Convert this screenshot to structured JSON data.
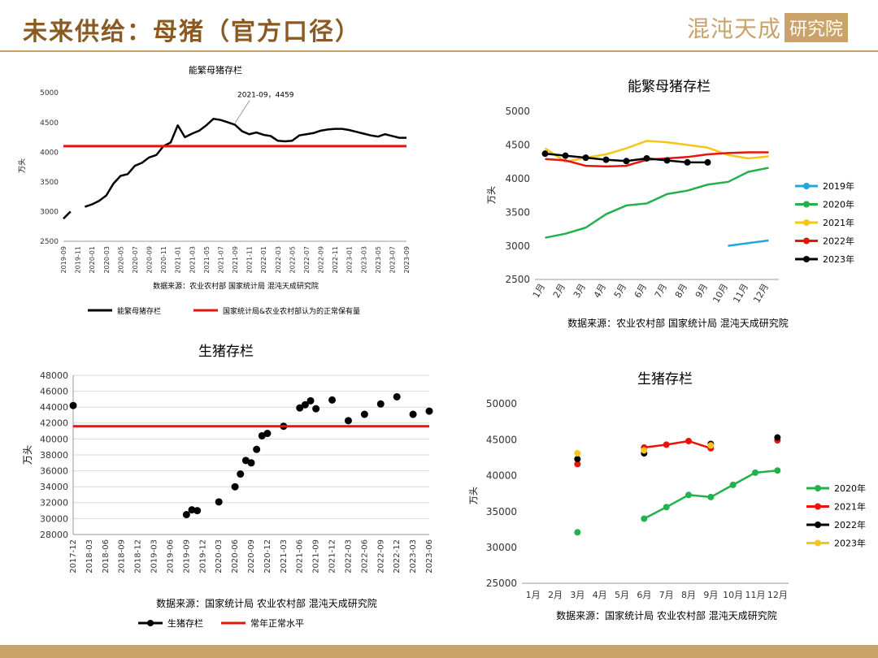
{
  "header": {
    "title": "未来供给：母猪（官方口径）",
    "brand_main": "混沌天成",
    "brand_box": "研究院"
  },
  "colors": {
    "accent": "#c9a36a",
    "title": "#8a5a22",
    "red": "#e8140c",
    "black": "#000000",
    "green": "#22b14c",
    "yellow": "#f5c518",
    "blue": "#1fa7e0"
  },
  "chart_data": [
    {
      "type": "line",
      "title": "能繁母猪存栏",
      "ylabel": "万头",
      "ylim": [
        2500,
        5000
      ],
      "yticks": [
        2500,
        3000,
        3500,
        4000,
        4500,
        5000
      ],
      "categories": [
        "2019-09",
        "2019-10",
        "2019-11",
        "2019-12",
        "2020-01",
        "2020-02",
        "2020-03",
        "2020-04",
        "2020-05",
        "2020-06",
        "2020-07",
        "2020-08",
        "2020-09",
        "2020-10",
        "2020-11",
        "2020-12",
        "2021-01",
        "2021-02",
        "2021-03",
        "2021-04",
        "2021-05",
        "2021-06",
        "2021-07",
        "2021-08",
        "2021-09",
        "2021-10",
        "2021-11",
        "2021-12",
        "2022-01",
        "2022-02",
        "2022-03",
        "2022-04",
        "2022-05",
        "2022-06",
        "2022-07",
        "2022-08",
        "2022-09",
        "2022-10",
        "2022-11",
        "2022-12",
        "2023-01",
        "2023-02",
        "2023-03",
        "2023-04",
        "2023-05",
        "2023-06",
        "2023-07",
        "2023-08",
        "2023-09"
      ],
      "tick_labels": [
        "2019-09",
        "2019-11",
        "2020-01",
        "2020-03",
        "2020-05",
        "2020-07",
        "2020-09",
        "2020-11",
        "2021-01",
        "2021-03",
        "2021-05",
        "2021-07",
        "2021-09",
        "2021-11",
        "2022-01",
        "2022-03",
        "2022-05",
        "2022-07",
        "2022-09",
        "2022-11",
        "2023-01",
        "2023-03",
        "2023-05",
        "2023-07",
        "2023-09"
      ],
      "series": [
        {
          "name": "能繁母猪存栏",
          "color": "#000000",
          "values": [
            2880,
            3000,
            null,
            3080,
            3120,
            3180,
            3270,
            3470,
            3600,
            3630,
            3770,
            3820,
            3910,
            3950,
            4100,
            4160,
            4450,
            4250,
            4310,
            4360,
            4450,
            4560,
            4540,
            4500,
            4459,
            4350,
            4300,
            4330,
            4290,
            4270,
            4190,
            4180,
            4190,
            4280,
            4300,
            4320,
            4360,
            4380,
            4390,
            4390,
            4370,
            4340,
            4310,
            4280,
            4260,
            4300,
            4270,
            4240,
            4240
          ]
        },
        {
          "name": "国家统计局&农业农村部认为的正常保有量",
          "color": "#e8140c",
          "constant": 4100
        }
      ],
      "annotation": {
        "text": "2021-09，4459",
        "category": "2021-09",
        "value": 4459
      },
      "source": "数据来源：农业农村部 国家统计局 混沌天成研究院",
      "legend": "bottom"
    },
    {
      "type": "line",
      "title": "能繁母猪存栏",
      "ylabel": "万头",
      "ylim": [
        2500,
        5000
      ],
      "yticks": [
        2500,
        3000,
        3500,
        4000,
        4500,
        5000
      ],
      "categories": [
        "1月",
        "2月",
        "3月",
        "4月",
        "5月",
        "6月",
        "7月",
        "8月",
        "9月",
        "10月",
        "11月",
        "12月"
      ],
      "series": [
        {
          "name": "2019年",
          "color": "#1fa7e0",
          "values": [
            null,
            null,
            null,
            null,
            null,
            null,
            null,
            null,
            null,
            3000,
            3040,
            3080
          ]
        },
        {
          "name": "2020年",
          "color": "#22b14c",
          "values": [
            3120,
            3180,
            3270,
            3470,
            3600,
            3630,
            3770,
            3820,
            3910,
            3950,
            4100,
            4160
          ]
        },
        {
          "name": "2021年",
          "color": "#f5c518",
          "values": [
            4450,
            4250,
            4310,
            4360,
            4450,
            4560,
            4540,
            4500,
            4459,
            4350,
            4300,
            4330
          ]
        },
        {
          "name": "2022年",
          "color": "#e8140c",
          "values": [
            4290,
            4270,
            4190,
            4180,
            4190,
            4280,
            4300,
            4320,
            4360,
            4380,
            4390,
            4390
          ]
        },
        {
          "name": "2023年",
          "color": "#000000",
          "markers": true,
          "values": [
            4370,
            4340,
            4310,
            4280,
            4260,
            4300,
            4270,
            4240,
            4240,
            null,
            null,
            null
          ]
        }
      ],
      "source": "数据来源：农业农村部 国家统计局 混沌天成研究院",
      "legend": "right"
    },
    {
      "type": "scatter",
      "title": "生猪存栏",
      "ylabel": "万头",
      "ylim": [
        28000,
        48000
      ],
      "yticks": [
        28000,
        30000,
        32000,
        34000,
        36000,
        38000,
        40000,
        42000,
        44000,
        46000,
        48000
      ],
      "categories": [
        "2017-12",
        "2018-01",
        "2018-02",
        "2018-03",
        "2018-04",
        "2018-05",
        "2018-06",
        "2018-07",
        "2018-08",
        "2018-09",
        "2018-10",
        "2018-11",
        "2018-12",
        "2019-01",
        "2019-02",
        "2019-03",
        "2019-04",
        "2019-05",
        "2019-06",
        "2019-07",
        "2019-08",
        "2019-09",
        "2019-10",
        "2019-11",
        "2019-12",
        "2020-01",
        "2020-02",
        "2020-03",
        "2020-04",
        "2020-05",
        "2020-06",
        "2020-07",
        "2020-08",
        "2020-09",
        "2020-10",
        "2020-11",
        "2020-12",
        "2021-01",
        "2021-02",
        "2021-03",
        "2021-04",
        "2021-05",
        "2021-06",
        "2021-07",
        "2021-08",
        "2021-09",
        "2021-10",
        "2021-11",
        "2021-12",
        "2022-01",
        "2022-02",
        "2022-03",
        "2022-04",
        "2022-05",
        "2022-06",
        "2022-07",
        "2022-08",
        "2022-09",
        "2022-10",
        "2022-11",
        "2022-12",
        "2023-01",
        "2023-02",
        "2023-03",
        "2023-04",
        "2023-05",
        "2023-06"
      ],
      "tick_labels": [
        "2017-12",
        "2018-03",
        "2018-06",
        "2018-09",
        "2018-12",
        "2019-03",
        "2019-06",
        "2019-09",
        "2019-12",
        "2020-03",
        "2020-06",
        "2020-09",
        "2020-12",
        "2021-03",
        "2021-06",
        "2021-09",
        "2021-12",
        "2022-03",
        "2022-06",
        "2022-09",
        "2022-12",
        "2023-03",
        "2023-06"
      ],
      "series": [
        {
          "name": "生猪存栏",
          "color": "#000000",
          "points": [
            [
              "2017-12",
              44200
            ],
            [
              "2019-09",
              30500
            ],
            [
              "2019-10",
              31100
            ],
            [
              "2019-11",
              31000
            ],
            [
              "2020-03",
              32100
            ],
            [
              "2020-06",
              34000
            ],
            [
              "2020-07",
              35600
            ],
            [
              "2020-08",
              37300
            ],
            [
              "2020-09",
              37000
            ],
            [
              "2020-10",
              38700
            ],
            [
              "2020-11",
              40400
            ],
            [
              "2020-12",
              40700
            ],
            [
              "2021-03",
              41600
            ],
            [
              "2021-06",
              43900
            ],
            [
              "2021-07",
              44300
            ],
            [
              "2021-08",
              44800
            ],
            [
              "2021-09",
              43800
            ],
            [
              "2021-12",
              44900
            ],
            [
              "2022-03",
              42300
            ],
            [
              "2022-06",
              43100
            ],
            [
              "2022-09",
              44400
            ],
            [
              "2022-12",
              45300
            ],
            [
              "2023-03",
              43100
            ],
            [
              "2023-06",
              43500
            ]
          ]
        },
        {
          "name": "常年正常水平",
          "color": "#e8140c",
          "constant": 41600
        }
      ],
      "source": "数据来源：国家统计局 农业农村部 混沌天成研究院",
      "legend": "bottom"
    },
    {
      "type": "line",
      "title": "生猪存栏",
      "ylabel": "万头",
      "ylim": [
        25000,
        50000
      ],
      "yticks": [
        25000,
        30000,
        35000,
        40000,
        45000,
        50000
      ],
      "categories": [
        "1月",
        "2月",
        "3月",
        "4月",
        "5月",
        "6月",
        "7月",
        "8月",
        "9月",
        "10月",
        "11月",
        "12月"
      ],
      "series": [
        {
          "name": "2020年",
          "color": "#22b14c",
          "values": [
            null,
            null,
            32100,
            null,
            null,
            34000,
            35600,
            37300,
            37000,
            38700,
            40400,
            40700
          ]
        },
        {
          "name": "2021年",
          "color": "#e8140c",
          "values": [
            null,
            null,
            41600,
            null,
            null,
            43900,
            44300,
            44800,
            43800,
            null,
            null,
            44900
          ]
        },
        {
          "name": "2022年",
          "color": "#000000",
          "values": [
            null,
            null,
            42300,
            null,
            null,
            43100,
            null,
            null,
            44400,
            null,
            null,
            45300
          ]
        },
        {
          "name": "2023年",
          "color": "#f5c518",
          "values": [
            null,
            null,
            43100,
            null,
            null,
            43500,
            null,
            null,
            44200,
            null,
            null,
            null
          ]
        }
      ],
      "source": "数据来源：国家统计局 农业农村部 混沌天成研究院",
      "legend": "right"
    }
  ]
}
